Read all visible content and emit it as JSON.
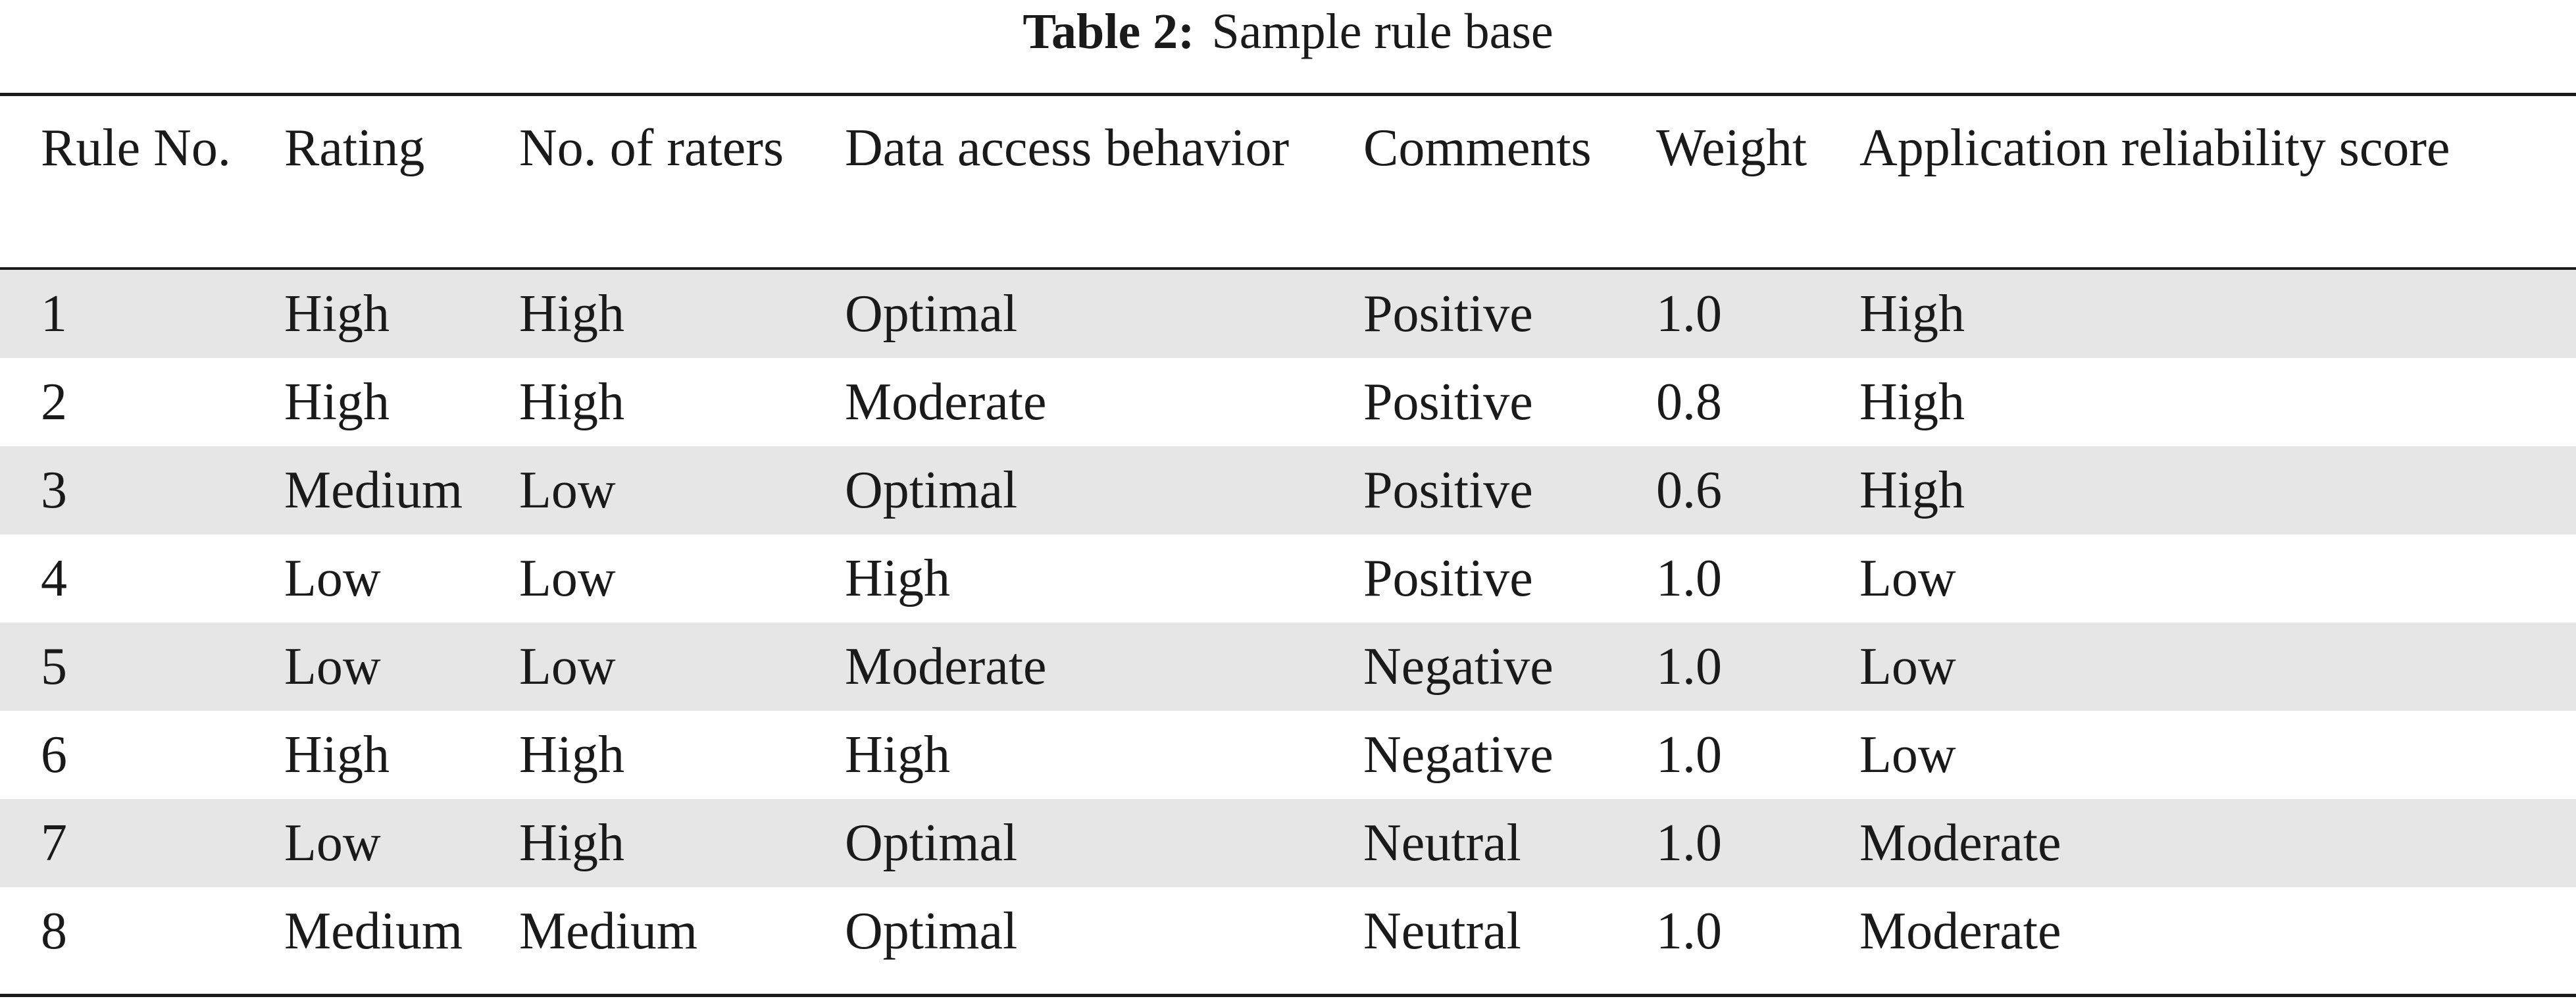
{
  "caption": {
    "label": "Table 2:",
    "text": "Sample rule base"
  },
  "columns": [
    "Rule No.",
    "Rating",
    "No. of raters",
    "Data access behavior",
    "Comments",
    "Weight",
    "Application reliability score"
  ],
  "rows": [
    [
      "1",
      "High",
      "High",
      "Optimal",
      "Positive",
      "1.0",
      "High"
    ],
    [
      "2",
      "High",
      "High",
      "Moderate",
      "Positive",
      "0.8",
      "High"
    ],
    [
      "3",
      "Medium",
      "Low",
      "Optimal",
      "Positive",
      "0.6",
      "High"
    ],
    [
      "4",
      "Low",
      "Low",
      "High",
      "Positive",
      "1.0",
      "Low"
    ],
    [
      "5",
      "Low",
      "Low",
      "Moderate",
      "Negative",
      "1.0",
      "Low"
    ],
    [
      "6",
      "High",
      "High",
      "High",
      "Negative",
      "1.0",
      "Low"
    ],
    [
      "7",
      "Low",
      "High",
      "Optimal",
      "Neutral",
      "1.0",
      "Moderate"
    ],
    [
      "8",
      "Medium",
      "Medium",
      "Optimal",
      "Neutral",
      "1.0",
      "Moderate"
    ]
  ]
}
